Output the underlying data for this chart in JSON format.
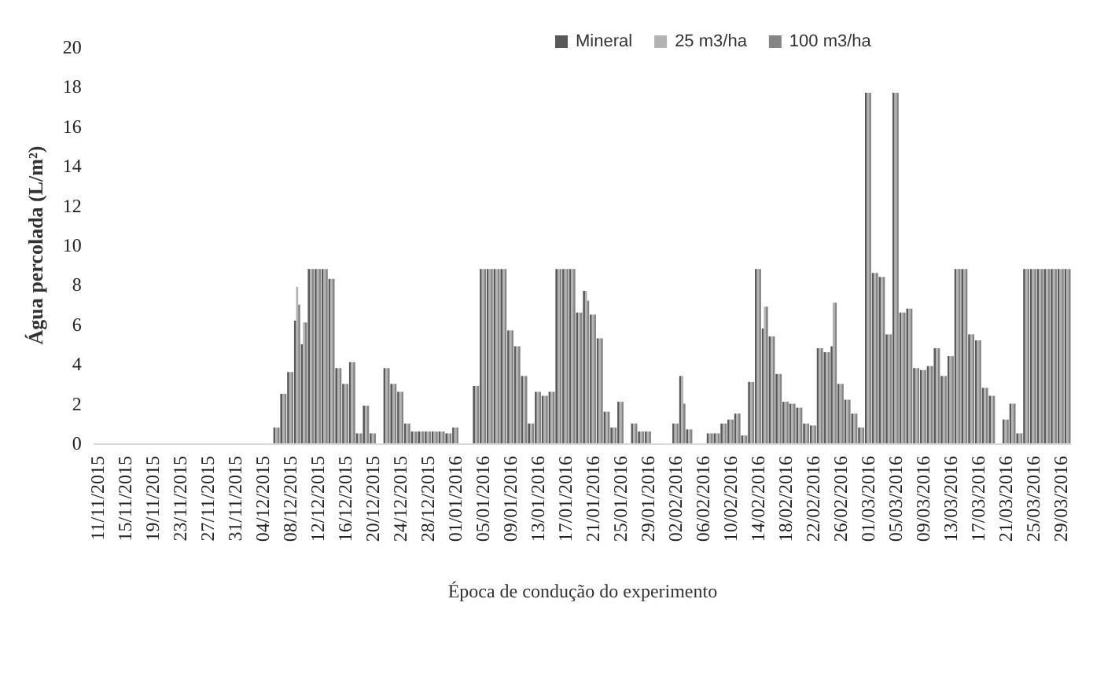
{
  "chart_data": {
    "type": "bar",
    "xlabel": "Época de condução do experimento",
    "ylabel": "Água percolada (L/m²)",
    "categories": [
      "11/11/2015",
      null,
      null,
      null,
      "15/11/2015",
      null,
      null,
      null,
      "19/11/2015",
      null,
      null,
      null,
      "23/11/2015",
      null,
      null,
      null,
      "27/11/2015",
      null,
      null,
      null,
      "31/11/2015",
      null,
      null,
      null,
      "04/12/2015",
      null,
      null,
      null,
      "08/12/2015",
      null,
      null,
      null,
      "12/12/2015",
      null,
      null,
      null,
      "16/12/2015",
      null,
      null,
      null,
      "20/12/2015",
      null,
      null,
      null,
      "24/12/2015",
      null,
      null,
      null,
      "28/12/2015",
      null,
      null,
      null,
      "01/01/2016",
      null,
      null,
      null,
      "05/01/2016",
      null,
      null,
      null,
      "09/01/2016",
      null,
      null,
      null,
      "13/01/2016",
      null,
      null,
      null,
      "17/01/2016",
      null,
      null,
      null,
      "21/01/2016",
      null,
      null,
      null,
      "25/01/2016",
      null,
      null,
      null,
      "29/01/2016",
      null,
      null,
      null,
      "02/02/2016",
      null,
      null,
      null,
      "06/02/2016",
      null,
      null,
      null,
      "10/02/2016",
      null,
      null,
      null,
      "14/02/2016",
      null,
      null,
      null,
      "18/02/2016",
      null,
      null,
      null,
      "22/02/2016",
      null,
      null,
      null,
      "26/02/2016",
      null,
      null,
      null,
      "01/03/2016",
      null,
      null,
      null,
      "05/03/2016",
      null,
      null,
      null,
      "09/03/2016",
      null,
      null,
      null,
      "13/03/2016",
      null,
      null,
      null,
      "17/03/2016",
      null,
      null,
      null,
      "21/03/2016",
      null,
      null,
      null,
      "25/03/2016",
      null,
      null,
      null,
      "29/03/2016",
      null
    ],
    "series": [
      {
        "name": "Mineral",
        "color": "#595959",
        "values": [
          0,
          0,
          0,
          0,
          0,
          0,
          0,
          0,
          0,
          0,
          0,
          0,
          0,
          0,
          0,
          0,
          0,
          0,
          0,
          0,
          0,
          0,
          0,
          0,
          0,
          0,
          0.8,
          2.5,
          3.6,
          6.2,
          5.0,
          8.8,
          8.8,
          8.8,
          8.3,
          3.8,
          3.0,
          4.1,
          0.5,
          1.9,
          0.5,
          0,
          3.8,
          3.0,
          2.6,
          1.0,
          0.6,
          0.6,
          0.6,
          0.6,
          0.6,
          0.5,
          0.8,
          0,
          0,
          2.9,
          8.8,
          8.8,
          8.8,
          8.8,
          5.7,
          4.9,
          3.4,
          1.0,
          2.6,
          2.4,
          2.6,
          8.8,
          8.8,
          8.8,
          6.6,
          7.7,
          6.5,
          5.3,
          1.6,
          0.8,
          2.1,
          0,
          1.0,
          0.6,
          0.6,
          0,
          0,
          0,
          1.0,
          3.4,
          0.7,
          0,
          0,
          0.5,
          0.5,
          1.0,
          1.2,
          1.5,
          0.4,
          3.1,
          8.8,
          5.8,
          5.4,
          3.5,
          2.1,
          2.0,
          1.8,
          1.0,
          0.9,
          4.8,
          4.6,
          4.9,
          3.0,
          2.2,
          1.5,
          0.8,
          17.7,
          8.6,
          8.4,
          5.5,
          17.7,
          6.6,
          6.8,
          3.8,
          3.7,
          3.9,
          4.8,
          3.4,
          4.4,
          8.8,
          8.8,
          5.5,
          5.2,
          2.8,
          2.4,
          0,
          1.2,
          2.0,
          0.5,
          8.8,
          8.8,
          8.8,
          8.8,
          8.8,
          8.8,
          8.8
        ]
      },
      {
        "name": "25 m3/ha",
        "color": "#b3b3b3",
        "values": [
          0,
          0,
          0,
          0,
          0,
          0,
          0,
          0,
          0,
          0,
          0,
          0,
          0,
          0,
          0,
          0,
          0,
          0,
          0,
          0,
          0,
          0,
          0,
          0,
          0,
          0,
          0.8,
          2.5,
          3.6,
          7.9,
          6.1,
          8.8,
          8.8,
          8.8,
          8.3,
          3.8,
          3.0,
          4.1,
          0.5,
          1.9,
          0.5,
          0,
          3.8,
          3.0,
          2.6,
          1.0,
          0.6,
          0.6,
          0.6,
          0.6,
          0.6,
          0.5,
          0.8,
          0,
          0,
          2.9,
          8.8,
          8.8,
          8.8,
          8.8,
          5.7,
          4.9,
          3.4,
          1.0,
          2.6,
          2.4,
          2.6,
          8.8,
          8.8,
          8.8,
          6.6,
          7.7,
          6.5,
          5.3,
          1.6,
          0.8,
          2.1,
          0,
          1.0,
          0.6,
          0.6,
          0,
          0,
          0,
          1.0,
          3.4,
          0.7,
          0,
          0,
          0.5,
          0.5,
          1.0,
          1.2,
          1.5,
          0.4,
          3.1,
          8.8,
          6.9,
          5.4,
          3.5,
          2.1,
          2.0,
          1.8,
          1.0,
          0.9,
          4.8,
          4.6,
          7.1,
          3.0,
          2.2,
          1.5,
          0.8,
          17.7,
          8.6,
          8.4,
          5.5,
          17.7,
          6.6,
          6.8,
          3.8,
          3.7,
          3.9,
          4.8,
          3.4,
          4.4,
          8.8,
          8.8,
          5.5,
          5.2,
          2.8,
          2.4,
          0,
          1.2,
          2.0,
          0.5,
          8.8,
          8.8,
          8.8,
          8.8,
          8.8,
          8.8,
          8.8
        ]
      },
      {
        "name": "100 m3/ha",
        "color": "#858585",
        "values": [
          0,
          0,
          0,
          0,
          0,
          0,
          0,
          0,
          0,
          0,
          0,
          0,
          0,
          0,
          0,
          0,
          0,
          0,
          0,
          0,
          0,
          0,
          0,
          0,
          0,
          0,
          0.8,
          2.5,
          3.6,
          7.0,
          6.1,
          8.8,
          8.8,
          8.8,
          8.3,
          3.8,
          3.0,
          4.1,
          0.5,
          1.9,
          0.5,
          0,
          3.8,
          3.0,
          2.6,
          1.0,
          0.6,
          0.6,
          0.6,
          0.6,
          0.6,
          0.5,
          0.8,
          0,
          0,
          2.9,
          8.8,
          8.8,
          8.8,
          8.8,
          5.7,
          4.9,
          3.4,
          1.0,
          2.6,
          2.4,
          2.6,
          8.8,
          8.8,
          8.8,
          6.6,
          7.2,
          6.5,
          5.3,
          1.6,
          0.8,
          2.1,
          0,
          1.0,
          0.6,
          0.6,
          0,
          0,
          0,
          1.0,
          2.0,
          0.7,
          0,
          0,
          0.5,
          0.5,
          1.0,
          1.2,
          1.5,
          0.4,
          3.1,
          8.8,
          6.9,
          5.4,
          3.5,
          2.1,
          2.0,
          1.8,
          1.0,
          0.9,
          4.8,
          4.6,
          7.1,
          3.0,
          2.2,
          1.5,
          0.8,
          17.7,
          8.6,
          8.4,
          5.5,
          17.7,
          6.6,
          6.8,
          3.8,
          3.7,
          3.9,
          4.8,
          3.4,
          4.4,
          8.8,
          8.8,
          5.5,
          5.2,
          2.8,
          2.4,
          0,
          1.2,
          2.0,
          0.5,
          8.8,
          8.8,
          8.8,
          8.8,
          8.8,
          8.8,
          8.8
        ]
      }
    ],
    "ylim": [
      0,
      20
    ],
    "yticks": [
      0,
      2,
      4,
      6,
      8,
      10,
      12,
      14,
      16,
      18,
      20
    ],
    "grid": false,
    "legend": "top"
  }
}
